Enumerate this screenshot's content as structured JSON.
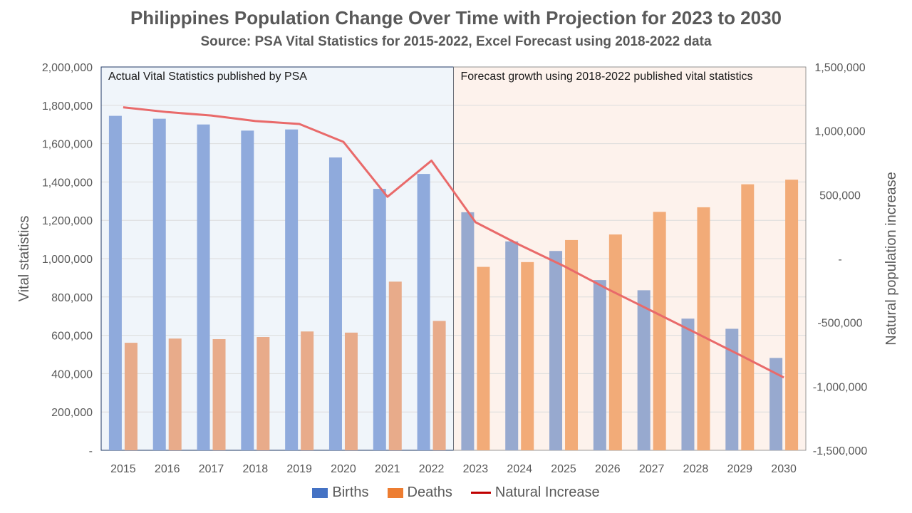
{
  "chart_data": {
    "type": "bar",
    "title": "Philippines Population Change Over Time with Projection for 2023 to 2030",
    "subtitle": "Source: PSA Vital Statistics for 2015-2022, Excel Forecast using 2018-2022 data",
    "ylabel": "Vital statistics",
    "y2label": "Natural population increase",
    "categories": [
      "2015",
      "2016",
      "2017",
      "2018",
      "2019",
      "2020",
      "2021",
      "2022",
      "2023",
      "2024",
      "2025",
      "2026",
      "2027",
      "2028",
      "2029",
      "2030"
    ],
    "ylim": [
      0,
      2000000
    ],
    "y2lim": [
      -1500000,
      1500000
    ],
    "yticks": [
      "-",
      "200,000",
      "400,000",
      "600,000",
      "800,000",
      "1,000,000",
      "1,200,000",
      "1,400,000",
      "1,600,000",
      "1,800,000",
      "2,000,000"
    ],
    "y2ticks": [
      "-1,500,000",
      "-1,000,000",
      "-500,000",
      "-",
      "500,000",
      "1,000,000",
      "1,500,000"
    ],
    "series": [
      {
        "name": "Births",
        "type": "bar",
        "axis": "left",
        "values": [
          1745000,
          1730000,
          1700000,
          1668000,
          1674000,
          1528000,
          1364000,
          1442000,
          1242000,
          1090000,
          1040000,
          888000,
          835000,
          687000,
          634000,
          482000
        ]
      },
      {
        "name": "Deaths",
        "type": "bar",
        "axis": "left",
        "values": [
          561000,
          583000,
          580000,
          591000,
          620000,
          614000,
          880000,
          675000,
          957000,
          982000,
          1097000,
          1126000,
          1244000,
          1268000,
          1388000,
          1412000
        ]
      },
      {
        "name": "Natural Increase",
        "type": "line",
        "axis": "right",
        "values": [
          1184000,
          1147000,
          1120000,
          1077000,
          1054000,
          914000,
          484000,
          767000,
          285000,
          108000,
          -57000,
          -238000,
          -409000,
          -581000,
          -754000,
          -930000
        ]
      }
    ],
    "regions": [
      {
        "label": "Actual Vital Statistics published by PSA"
      },
      {
        "label": "Forecast growth using 2018-2022 published vital statistics"
      }
    ],
    "colors": {
      "births_actual": "#8faadc",
      "births_forecast": "#97a9cf",
      "deaths_actual": "#e8ab8a",
      "deaths_forecast": "#f2ab78",
      "line": "#e96a6a",
      "actual_bg": "#f0f5fa",
      "forecast_bg": "#fdf2ec",
      "legend_births": "#4472c4",
      "legend_deaths": "#ed7d31",
      "legend_line": "#c00000"
    },
    "grid": true,
    "legend_position": "bottom"
  }
}
